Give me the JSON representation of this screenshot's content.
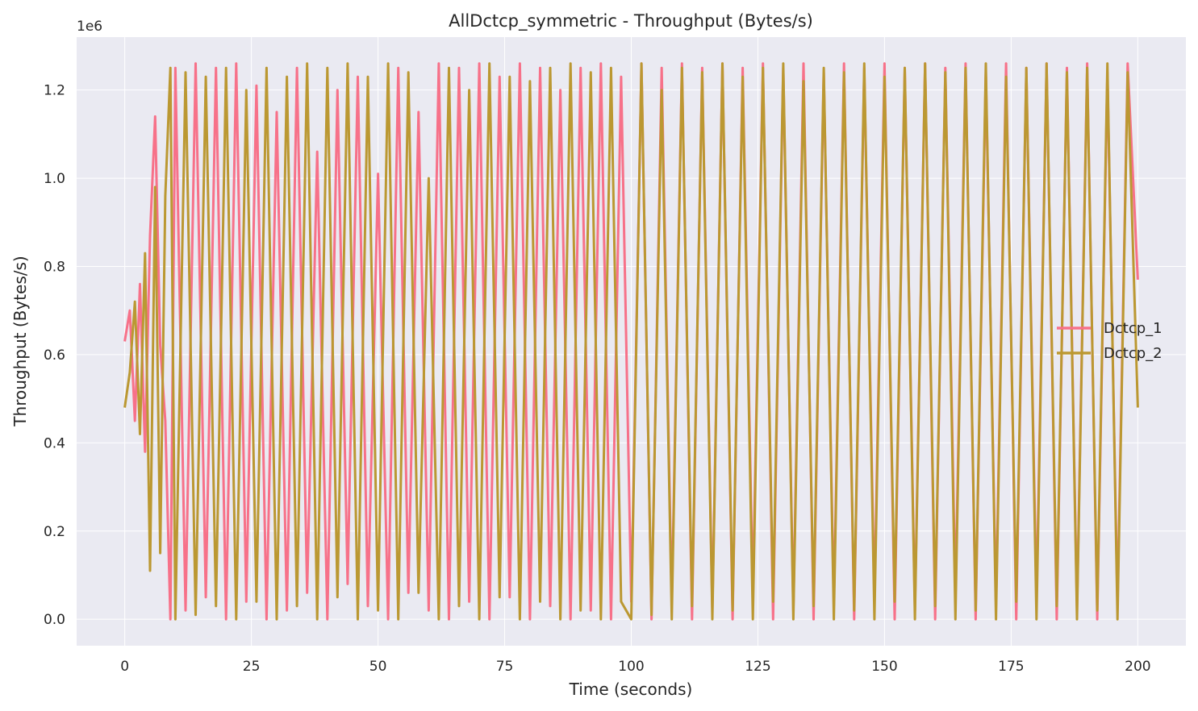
{
  "chart_data": {
    "type": "line",
    "title": "AllDctcp_symmetric - Throughput (Bytes/s)",
    "xlabel": "Time (seconds)",
    "ylabel": "Throughput (Bytes/s)",
    "y_offset_label": "1e6",
    "xlim": [
      -9.5,
      209.5
    ],
    "ylim": [
      -60000,
      1320000
    ],
    "x_ticks": [
      0,
      25,
      50,
      75,
      100,
      125,
      150,
      175,
      200
    ],
    "x_tick_labels": [
      "0",
      "25",
      "50",
      "75",
      "100",
      "125",
      "150",
      "175",
      "200"
    ],
    "y_ticks": [
      0,
      200000,
      400000,
      600000,
      800000,
      1000000,
      1200000
    ],
    "y_tick_labels": [
      "0.0",
      "0.2",
      "0.4",
      "0.6",
      "0.8",
      "1.0",
      "1.2"
    ],
    "grid": true,
    "legend_position": "center-right",
    "series": [
      {
        "name": "Dctcp_1",
        "color": "#f77189",
        "x": [
          0,
          1,
          2,
          3,
          4,
          5,
          6,
          7,
          8,
          9,
          10,
          12,
          14,
          16,
          18,
          20,
          22,
          24,
          26,
          28,
          30,
          32,
          34,
          36,
          38,
          40,
          42,
          44,
          46,
          48,
          50,
          52,
          54,
          56,
          58,
          60,
          62,
          64,
          66,
          68,
          70,
          72,
          74,
          76,
          78,
          80,
          82,
          84,
          86,
          88,
          90,
          92,
          94,
          96,
          98,
          100,
          102,
          104,
          106,
          108,
          110,
          112,
          114,
          116,
          118,
          120,
          122,
          124,
          126,
          128,
          130,
          132,
          134,
          136,
          138,
          140,
          142,
          144,
          146,
          148,
          150,
          152,
          154,
          156,
          158,
          160,
          162,
          164,
          166,
          168,
          170,
          172,
          174,
          176,
          178,
          180,
          182,
          184,
          186,
          188,
          190,
          192,
          194,
          196,
          198,
          200
        ],
        "values": [
          630000,
          700000,
          450000,
          760000,
          380000,
          870000,
          1140000,
          620000,
          450000,
          0,
          1250000,
          20000,
          1260000,
          50000,
          1250000,
          0,
          1260000,
          40000,
          1210000,
          0,
          1150000,
          20000,
          1250000,
          60000,
          1060000,
          0,
          1200000,
          80000,
          1230000,
          30000,
          1010000,
          0,
          1250000,
          60000,
          1150000,
          20000,
          1260000,
          0,
          1250000,
          40000,
          1260000,
          0,
          1230000,
          50000,
          1260000,
          0,
          1250000,
          30000,
          1200000,
          0,
          1250000,
          20000,
          1260000,
          0,
          1230000,
          40000,
          1260000,
          0,
          1250000,
          30000,
          1260000,
          0,
          1250000,
          20000,
          1260000,
          0,
          1250000,
          50000,
          1260000,
          0,
          1250000,
          20000,
          1260000,
          0,
          1240000,
          30000,
          1260000,
          0,
          1250000,
          40000,
          1260000,
          0,
          1250000,
          20000,
          1260000,
          0,
          1250000,
          50000,
          1260000,
          0,
          1240000,
          30000,
          1260000,
          0,
          1250000,
          40000,
          1260000,
          0,
          1250000,
          20000,
          1260000,
          0,
          1240000,
          30000,
          1260000,
          770000
        ]
      },
      {
        "name": "Dctcp_2",
        "color": "#bb9832",
        "x": [
          0,
          1,
          2,
          3,
          4,
          5,
          6,
          7,
          8,
          9,
          10,
          12,
          14,
          16,
          18,
          20,
          22,
          24,
          26,
          28,
          30,
          32,
          34,
          36,
          38,
          40,
          42,
          44,
          46,
          48,
          50,
          52,
          54,
          56,
          58,
          60,
          62,
          64,
          66,
          68,
          70,
          72,
          74,
          76,
          78,
          80,
          82,
          84,
          86,
          88,
          90,
          92,
          94,
          96,
          98,
          100,
          102,
          104,
          106,
          108,
          110,
          112,
          114,
          116,
          118,
          120,
          122,
          124,
          126,
          128,
          130,
          132,
          134,
          136,
          138,
          140,
          142,
          144,
          146,
          148,
          150,
          152,
          154,
          156,
          158,
          160,
          162,
          164,
          166,
          168,
          170,
          172,
          174,
          176,
          178,
          180,
          182,
          184,
          186,
          188,
          190,
          192,
          194,
          196,
          198,
          200
        ],
        "values": [
          480000,
          560000,
          720000,
          420000,
          830000,
          110000,
          980000,
          150000,
          960000,
          1250000,
          0,
          1240000,
          10000,
          1230000,
          30000,
          1250000,
          0,
          1200000,
          40000,
          1250000,
          0,
          1230000,
          30000,
          1260000,
          0,
          1250000,
          50000,
          1260000,
          0,
          1230000,
          20000,
          1260000,
          0,
          1240000,
          60000,
          1000000,
          0,
          1250000,
          30000,
          1200000,
          0,
          1260000,
          50000,
          1230000,
          0,
          1220000,
          40000,
          1250000,
          0,
          1260000,
          20000,
          1240000,
          0,
          1250000,
          40000,
          0,
          1260000,
          10000,
          1200000,
          0,
          1250000,
          30000,
          1240000,
          0,
          1260000,
          20000,
          1230000,
          0,
          1250000,
          40000,
          1260000,
          0,
          1220000,
          30000,
          1250000,
          0,
          1240000,
          20000,
          1260000,
          0,
          1230000,
          40000,
          1250000,
          0,
          1260000,
          30000,
          1240000,
          0,
          1250000,
          20000,
          1260000,
          0,
          1230000,
          40000,
          1250000,
          0,
          1260000,
          30000,
          1240000,
          0,
          1250000,
          20000,
          1260000,
          0,
          1240000,
          480000
        ]
      }
    ]
  }
}
